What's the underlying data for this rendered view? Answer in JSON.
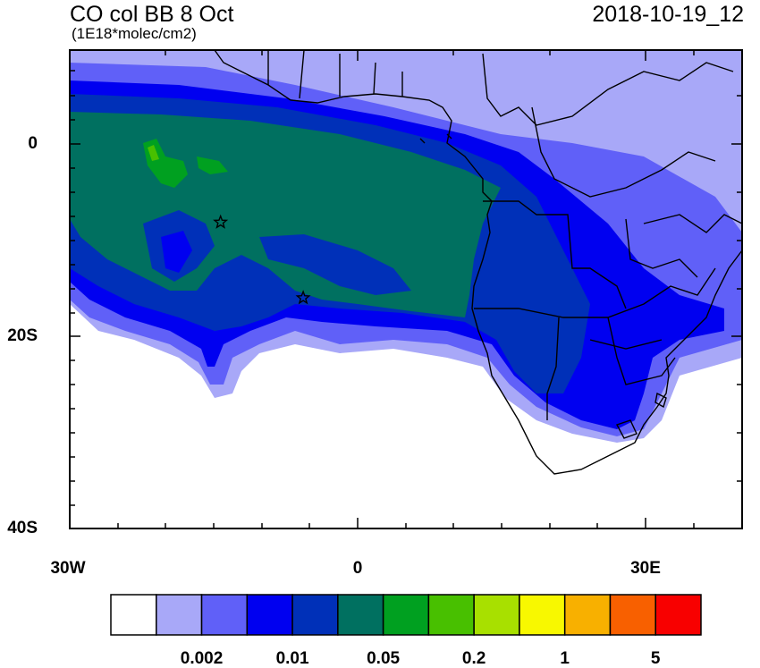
{
  "header": {
    "title": "CO col BB 8 Oct",
    "units": "(1E18*molec/cm2)",
    "timestamp": "2018-10-19_12"
  },
  "axes": {
    "y_labels": [
      "0",
      "20S",
      "40S"
    ],
    "x_labels": [
      "30W",
      "0",
      "30E"
    ],
    "lat_range": [
      -40,
      10
    ],
    "lon_range": [
      -30,
      40
    ]
  },
  "markers": [
    {
      "label": "star",
      "lon": -14.3,
      "lat": -8.0
    },
    {
      "label": "star",
      "lon": -5.7,
      "lat": -15.9
    }
  ],
  "colorbar": {
    "colors": [
      "#ffffff",
      "#a8a8f8",
      "#6060f8",
      "#0000f0",
      "#0030b8",
      "#007060",
      "#00a020",
      "#48c000",
      "#a8e000",
      "#f8f800",
      "#f8b000",
      "#f86000",
      "#f80000"
    ],
    "labels": [
      {
        "text": "0.002",
        "after_box": 2
      },
      {
        "text": "0.01",
        "after_box": 4
      },
      {
        "text": "0.05",
        "after_box": 6
      },
      {
        "text": "0.2",
        "after_box": 8
      },
      {
        "text": "1",
        "after_box": 10
      },
      {
        "text": "5",
        "after_box": 12
      }
    ]
  },
  "colors": {
    "frame": "#000000",
    "coastline": "#000000"
  }
}
